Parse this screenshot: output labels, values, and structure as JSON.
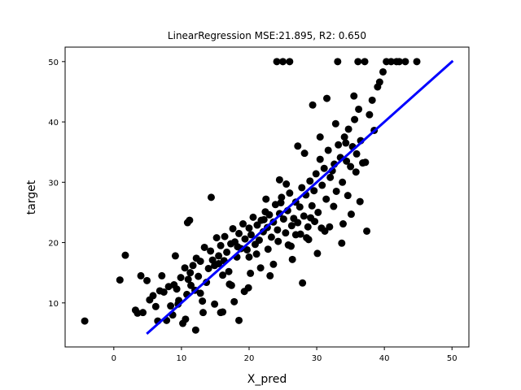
{
  "chart_data": {
    "type": "scatter",
    "title": "LinearRegression MSE:21.895, R2: 0.650",
    "xlabel": "X_pred",
    "ylabel": "target",
    "xlim": [
      -7.2,
      52.5
    ],
    "ylim": [
      2.7,
      52.4
    ],
    "xticks": [
      0,
      10,
      20,
      30,
      40,
      50
    ],
    "yticks": [
      10,
      20,
      30,
      40,
      50
    ],
    "xtick_labels": [
      "0",
      "10",
      "20",
      "30",
      "40",
      "50"
    ],
    "ytick_labels": [
      "10",
      "20",
      "30",
      "40",
      "50"
    ],
    "grid": false,
    "legend": "none",
    "point_color": "#000000",
    "line_color": "#0000ff",
    "series": [
      {
        "kind": "scatter",
        "x": [
          -4.3,
          0.9,
          1.7,
          3.2,
          3.5,
          4.0,
          4.3,
          4.9,
          5.3,
          5.8,
          6.2,
          6.5,
          6.8,
          7.1,
          7.4,
          7.8,
          8.1,
          8.4,
          8.7,
          8.9,
          9.1,
          9.3,
          9.6,
          9.9,
          10.2,
          10.5,
          10.8,
          11.0,
          11.3,
          11.7,
          12.0,
          12.2,
          12.5,
          12.8,
          13.1,
          13.4,
          13.7,
          14.0,
          14.3,
          14.6,
          14.9,
          15.2,
          15.5,
          15.8,
          16.1,
          16.4,
          16.7,
          17.0,
          17.3,
          17.6,
          17.9,
          18.2,
          18.5,
          18.8,
          19.1,
          19.4,
          19.7,
          20.0,
          20.3,
          20.6,
          20.9,
          21.2,
          21.5,
          21.8,
          22.1,
          22.4,
          22.7,
          23.0,
          23.3,
          23.6,
          23.9,
          24.2,
          24.5,
          24.8,
          25.1,
          25.4,
          25.7,
          26.0,
          26.3,
          26.6,
          26.9,
          27.2,
          27.5,
          27.8,
          28.1,
          28.4,
          28.7,
          29.0,
          29.3,
          29.6,
          29.9,
          30.2,
          30.5,
          30.8,
          31.1,
          31.4,
          31.7,
          32.0,
          32.3,
          32.6,
          32.9,
          33.2,
          33.5,
          33.8,
          34.1,
          34.4,
          34.7,
          35.0,
          35.3,
          35.6,
          35.9,
          36.2,
          36.5,
          36.8,
          37.4,
          37.8,
          38.2,
          39.0,
          39.8,
          41.0,
          42.2,
          43.1,
          44.8,
          10.9,
          11.2,
          14.4,
          15.5,
          18.5,
          20.0,
          22.5,
          24.5,
          25.5,
          27.2,
          28.2,
          29.4,
          30.5,
          31.5,
          32.8,
          34.3,
          35.5,
          24.1,
          25.0,
          26.0,
          33.1,
          36.1,
          37.1,
          40.3,
          41.8,
          12.1,
          13.2,
          16.1,
          17.8,
          19.3,
          21.7,
          23.1,
          26.4,
          27.9,
          28.8,
          30.1,
          31.9,
          33.7,
          35.1,
          36.4,
          11.4,
          14.9,
          16.3,
          17.1,
          18.3,
          19.9,
          21.1,
          22.2,
          23.6,
          24.7,
          25.8,
          26.9,
          28.5,
          29.7,
          31.2,
          32.5,
          33.9,
          9.5,
          10.6,
          12.8,
          15.8,
          17.4,
          20.2,
          22.8,
          24.3,
          26.2,
          27.6,
          29.1,
          30.7,
          34.6,
          35.8,
          37.2,
          38.5,
          39.3
        ],
        "y": [
          7.0,
          13.8,
          17.9,
          8.8,
          8.3,
          14.5,
          8.4,
          13.7,
          10.5,
          11.2,
          9.4,
          7.0,
          12.0,
          14.5,
          11.8,
          7.1,
          12.7,
          9.5,
          8.0,
          13.0,
          17.8,
          12.3,
          10.4,
          14.2,
          6.6,
          15.8,
          11.4,
          13.9,
          15.0,
          16.2,
          12.1,
          17.4,
          14.4,
          16.9,
          10.3,
          19.2,
          13.4,
          15.7,
          18.6,
          17.1,
          16.2,
          20.8,
          17.8,
          19.5,
          14.6,
          21.0,
          18.4,
          15.2,
          19.8,
          22.3,
          20.1,
          17.6,
          21.5,
          19.0,
          23.1,
          20.6,
          18.8,
          22.4,
          21.3,
          24.2,
          19.7,
          22.9,
          20.4,
          23.7,
          21.8,
          25.1,
          22.5,
          24.6,
          20.9,
          23.4,
          26.3,
          22.1,
          24.8,
          27.5,
          23.9,
          21.6,
          25.3,
          28.2,
          22.8,
          24.0,
          26.7,
          23.3,
          25.9,
          29.1,
          24.4,
          27.9,
          22.6,
          30.2,
          26.1,
          28.6,
          31.4,
          25.0,
          33.8,
          29.5,
          32.3,
          27.2,
          35.3,
          30.8,
          31.9,
          33.0,
          28.5,
          36.2,
          34.1,
          30.0,
          37.5,
          33.5,
          38.8,
          32.6,
          35.9,
          40.4,
          34.7,
          42.1,
          36.9,
          33.2,
          21.9,
          41.2,
          43.6,
          45.8,
          48.3,
          50.0,
          50.0,
          50.0,
          50.0,
          23.3,
          23.7,
          27.5,
          16.5,
          7.1,
          17.6,
          27.2,
          30.4,
          29.7,
          36.0,
          34.8,
          42.8,
          37.5,
          43.9,
          39.7,
          36.5,
          44.3,
          50.0,
          50.0,
          50.0,
          50.0,
          50.0,
          50.0,
          50.0,
          50.0,
          5.5,
          8.4,
          8.5,
          10.2,
          11.9,
          15.8,
          14.5,
          17.2,
          13.3,
          20.5,
          18.2,
          22.6,
          19.9,
          24.7,
          26.8,
          12.9,
          9.8,
          17.0,
          13.1,
          19.3,
          12.5,
          18.1,
          23.8,
          16.4,
          26.6,
          19.6,
          21.3,
          20.8,
          23.5,
          21.9,
          26.0,
          23.1,
          9.8,
          7.3,
          11.6,
          8.4,
          12.9,
          14.9,
          18.9,
          20.2,
          19.4,
          21.4,
          24.1,
          22.4,
          27.8,
          31.7,
          33.3,
          38.6,
          46.6
        ]
      },
      {
        "kind": "line",
        "x": [
          5,
          50
        ],
        "y": [
          5,
          50
        ]
      }
    ]
  }
}
